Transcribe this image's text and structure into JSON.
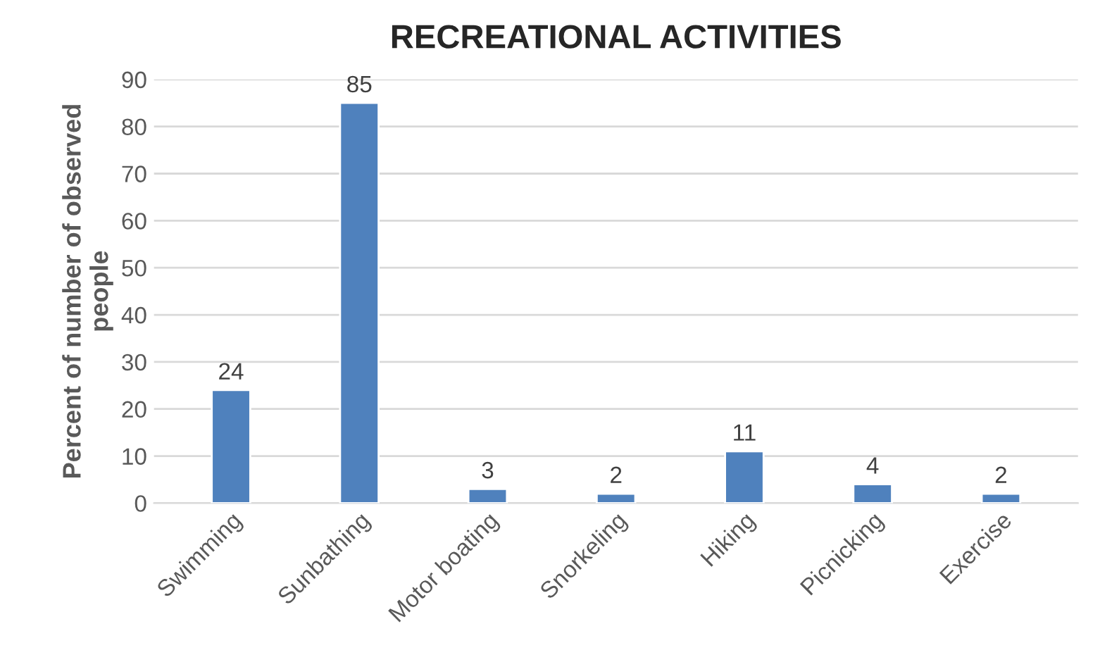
{
  "chart_data": {
    "type": "bar",
    "title": "RECREATIONAL ACTIVITIES",
    "ylabel": "Percent of number of observed\npeople",
    "categories": [
      "Swimming",
      "Sunbathing",
      "Motor boating",
      "Snorkeling",
      "Hiking",
      "Picnicking",
      "Exercise"
    ],
    "values": [
      24,
      85,
      3,
      2,
      11,
      4,
      2
    ],
    "color": "#4f81bd",
    "ylim": [
      0,
      90
    ],
    "yticks": [
      0,
      10,
      20,
      30,
      40,
      50,
      60,
      70,
      80,
      90
    ],
    "grid": "y",
    "data_labels": true
  }
}
